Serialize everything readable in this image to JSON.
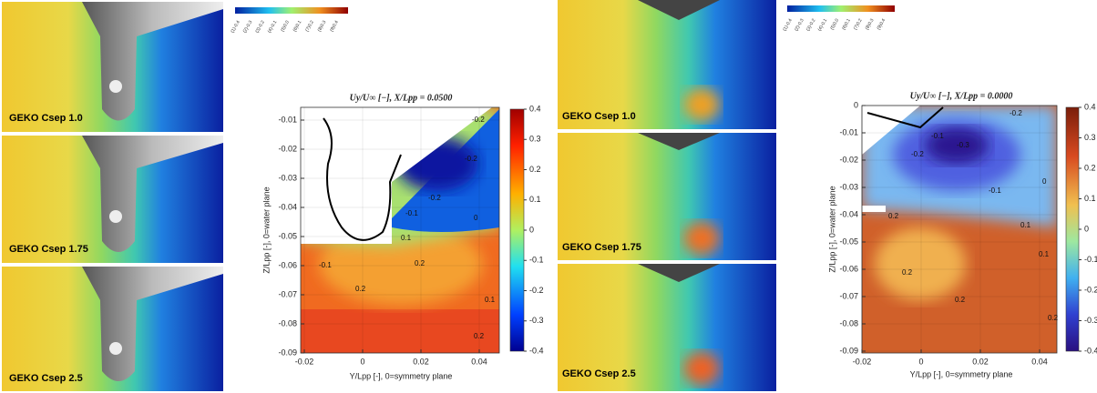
{
  "left_group": {
    "panels": [
      {
        "label": "GEKO Csep 1.0"
      },
      {
        "label": "GEKO Csep 1.75"
      },
      {
        "label": "GEKO Csep 2.5"
      }
    ],
    "legend": {
      "labels": [
        "(1)-0.4",
        "(2)-0.3",
        "(3)-0.2",
        "(4)-0.1",
        "(5)0.0",
        "(6)0.1",
        "(7)0.2",
        "(8)0.3",
        "(9)0.4"
      ]
    }
  },
  "plot_a": {
    "title": "Uy/U∞ [−],   X/Lpp = 0.0500",
    "ylabel": "Z/Lpp [-], 0=water plane",
    "xlabel": "Y/Lpp [-], 0=symmetry plane",
    "yticks": [
      -0.01,
      -0.02,
      -0.03,
      -0.04,
      -0.05,
      -0.06,
      -0.07,
      -0.08,
      -0.09
    ],
    "xticks": [
      -0.02,
      0,
      0.02,
      0.04
    ],
    "cbar_ticks": [
      0.4,
      0.3,
      0.2,
      0.1,
      0,
      -0.1,
      -0.2,
      -0.3,
      -0.4
    ],
    "contour_labels": [
      "-0.2",
      "-0.2",
      "-0.2",
      "-0.1",
      "0",
      "0.1",
      "0.2",
      "0.2",
      "-0.1",
      "0.1",
      "0.2"
    ]
  },
  "right_group": {
    "panels": [
      {
        "label": "GEKO Csep 1.0"
      },
      {
        "label": "GEKO Csep 1.75"
      },
      {
        "label": "GEKO Csep 2.5"
      }
    ],
    "legend": {
      "labels": [
        "(1)-0.4",
        "(2)-0.3",
        "(3)-0.2",
        "(4)-0.1",
        "(5)0.0",
        "(6)0.1",
        "(7)0.2",
        "(8)0.3",
        "(9)0.4"
      ]
    }
  },
  "plot_b": {
    "title": "Uy/U∞ [−],   X/Lpp = 0.0000",
    "ylabel": "Z/Lpp [-], 0=water plane",
    "xlabel": "Y/Lpp [-], 0=symmetry plane",
    "yticks": [
      0,
      -0.01,
      -0.02,
      -0.03,
      -0.04,
      -0.05,
      -0.06,
      -0.07,
      -0.08,
      -0.09
    ],
    "xticks": [
      -0.02,
      0,
      0.02,
      0.04
    ],
    "cbar_ticks": [
      0.4,
      0.3,
      0.2,
      0.1,
      0,
      -0.1,
      -0.2,
      -0.3,
      -0.4
    ],
    "contour_labels": [
      "-0.2",
      "-0.2",
      "-0.3",
      "-0.1",
      "-0.1",
      "0",
      "0.1",
      "0.2",
      "0.2",
      "0.2",
      "0.1",
      "0.2"
    ]
  }
}
